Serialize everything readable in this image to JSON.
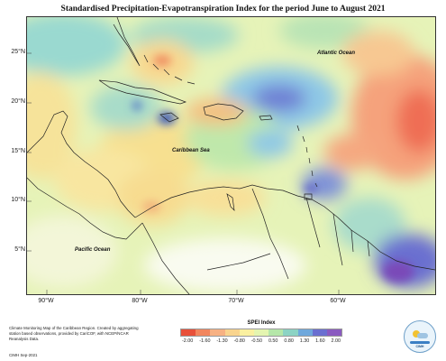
{
  "title": "Standardised Precipitation-Evapotranspiration Index for the period June to August 2021",
  "map": {
    "lat_labels": [
      "25°N",
      "20°N",
      "15°N",
      "10°N",
      "5°N"
    ],
    "lon_labels": [
      "90°W",
      "80°W",
      "70°W",
      "60°W"
    ],
    "ocean_labels": {
      "atlantic": "Atlantic Ocean",
      "caribbean": "Caribbean Sea",
      "pacific": "Pacific Ocean"
    }
  },
  "legend": {
    "title": "SPEI Index",
    "labels": [
      "-2.00",
      "-1.60",
      "-1.30",
      "-0.80",
      "-0.50",
      "0.50",
      "0.80",
      "1.30",
      "1.60",
      "2.00"
    ],
    "colors": [
      "#e8503a",
      "#f2865e",
      "#f7b183",
      "#f9d48e",
      "#faf0a0",
      "#e4f5b0",
      "#b5e7a9",
      "#8cd3c4",
      "#6fa8dc",
      "#6a6fd0",
      "#8a5ac0"
    ]
  },
  "credit": {
    "text": "Climate Monitoring Map of the Caribbean Region. Created by aggregating station based observations, provided by CariCOF, with NCEP/NCAR Reanalysis Data.",
    "date": "CIMH Sep-2021"
  },
  "logo": {
    "text": "CIMH"
  }
}
